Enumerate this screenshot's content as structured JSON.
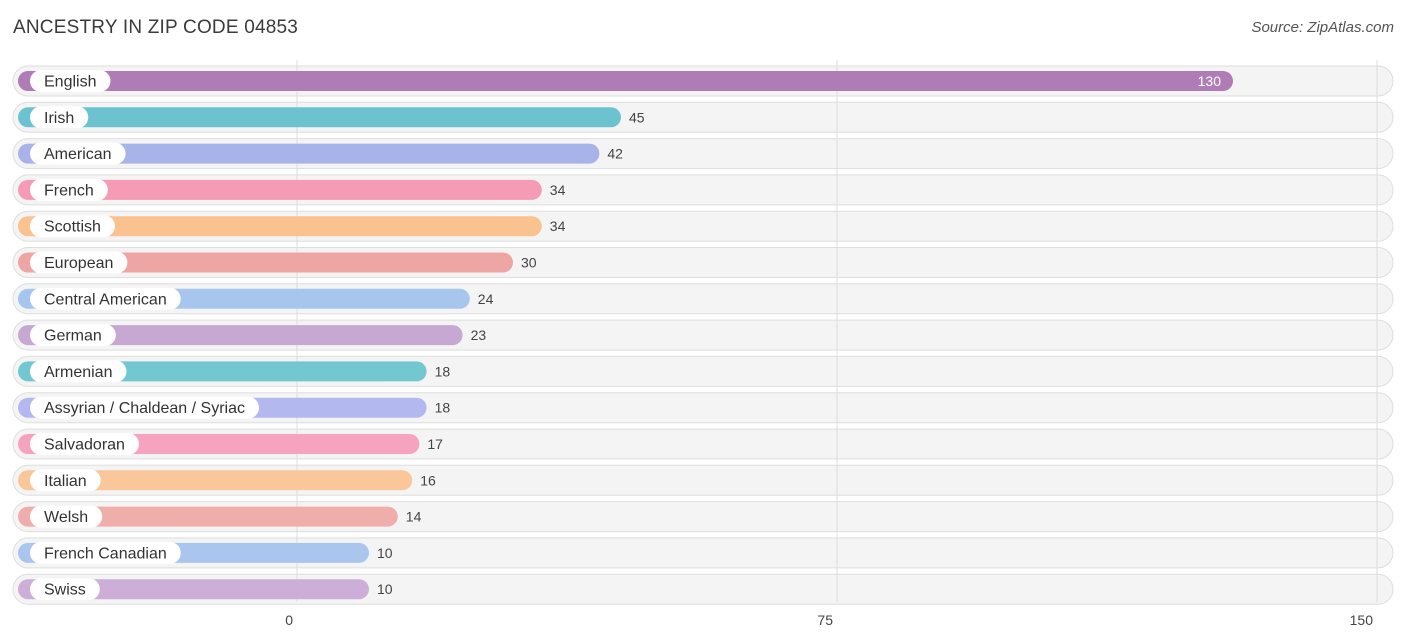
{
  "header": {
    "title": "ANCESTRY IN ZIP CODE 04853",
    "source": "Source: ZipAtlas.com"
  },
  "chart_data": {
    "type": "bar",
    "orientation": "horizontal",
    "categories": [
      "English",
      "Irish",
      "American",
      "French",
      "Scottish",
      "European",
      "Central American",
      "German",
      "Armenian",
      "Assyrian / Chaldean / Syriac",
      "Salvadoran",
      "Italian",
      "Welsh",
      "French Canadian",
      "Swiss"
    ],
    "values": [
      130,
      45,
      42,
      34,
      34,
      30,
      24,
      23,
      18,
      18,
      17,
      16,
      14,
      10,
      10
    ],
    "colors": [
      "#b07cb6",
      "#6cc3cf",
      "#a8b3ea",
      "#f59bb6",
      "#f9c28f",
      "#eea6a4",
      "#a6c6ee",
      "#c7a8d3",
      "#73c7d0",
      "#b3b8ee",
      "#f6a3bf",
      "#f9c799",
      "#f0aeab",
      "#aac6ee",
      "#cdaed8"
    ],
    "xlim": [
      0,
      150
    ],
    "xticks": [
      0,
      75,
      150
    ],
    "grid": true
  }
}
